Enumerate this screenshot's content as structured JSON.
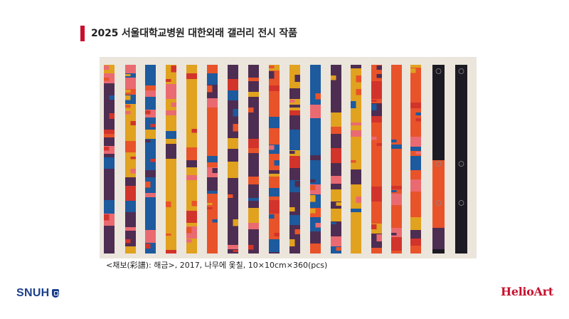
{
  "header": {
    "title": "2025 서울대학교병원 대한외래 갤러리 전시 작품"
  },
  "artwork": {
    "description_caption": "<채보(彩譜): 해금>, 2017, 나무에 옻칠, 10×10cm×360(pcs)",
    "colors": {
      "yellow": "#e0a21f",
      "orange": "#e8532a",
      "red": "#d2342b",
      "pink": "#ea6a72",
      "purple": "#4e2d52",
      "blue": "#1d5a9e",
      "black": "#1c1a22",
      "background": "#ebe5dc"
    }
  },
  "footer": {
    "left_logo": "SNUH",
    "right_logo": "HelioArt"
  }
}
